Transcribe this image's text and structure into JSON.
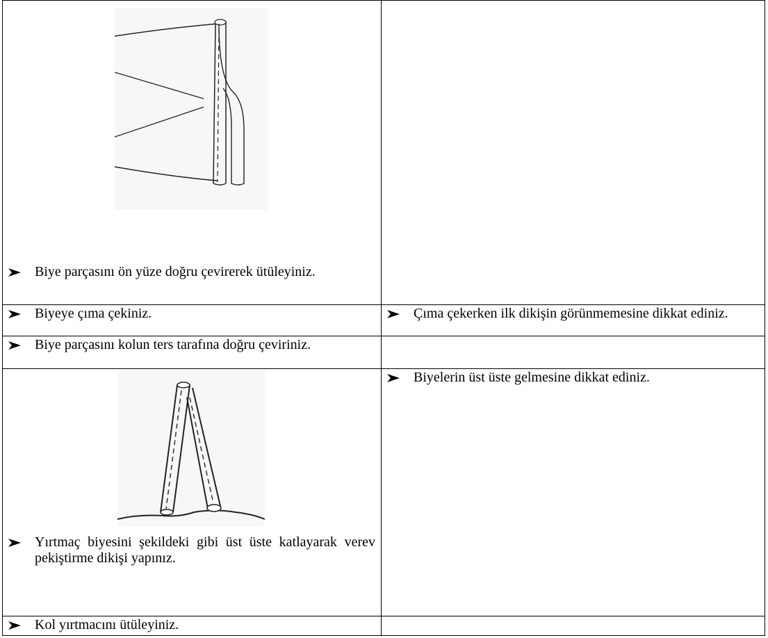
{
  "table": {
    "rows": [
      {
        "left": "Biye parçasını ön yüze doğru çevirerek ütüleyiniz."
      },
      {
        "left": "Biyeye çıma çekiniz.",
        "right": "Çıma çekerken ilk dikişin görünmemesine dikkat ediniz."
      },
      {
        "left": "Biye parçasını kolun ters tarafına doğru çeviriniz."
      },
      {
        "left": "Yırtmaç biyesini şekildeki gibi üst üste katlayarak verev pekiştirme dikişi yapınız.",
        "right": "Biyelerin üst üste gelmesine dikkat ediniz."
      },
      {
        "left": "Kol yırtmacını ütüleyiniz."
      }
    ]
  }
}
